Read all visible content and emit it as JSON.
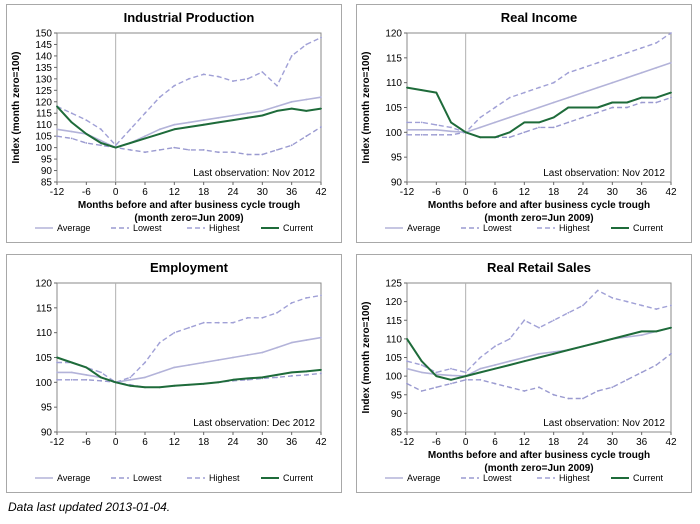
{
  "footer": "Data last updated 2013-01-04.",
  "colors": {
    "average": "#b3b3d9",
    "lowest": "#9a9ad0",
    "highest": "#a0a0d6",
    "current": "#1e6b3a"
  },
  "chart_data": [
    {
      "type": "line",
      "title": "Industrial Production",
      "xlabel": "Months before and after business cycle trough",
      "xlabel2": "(month zero=Jun 2009)",
      "ylabel": "Index (month zero=100)",
      "note": "Last observation: Nov 2012",
      "xlim": [
        -12,
        42
      ],
      "xticks": [
        -12,
        -6,
        0,
        6,
        12,
        18,
        24,
        30,
        36,
        42
      ],
      "ylim": [
        85,
        150
      ],
      "yticks": [
        85,
        90,
        95,
        100,
        105,
        110,
        115,
        120,
        125,
        130,
        135,
        140,
        145,
        150
      ],
      "x": [
        -12,
        -9,
        -6,
        -3,
        0,
        3,
        6,
        9,
        12,
        15,
        18,
        21,
        24,
        27,
        30,
        33,
        36,
        39,
        42
      ],
      "series": [
        {
          "name": "Average",
          "values": [
            108,
            107,
            106,
            103,
            100,
            102,
            105,
            108,
            110,
            111,
            112,
            113,
            114,
            115,
            116,
            118,
            120,
            121,
            122
          ]
        },
        {
          "name": "Lowest",
          "values": [
            105,
            104,
            102,
            101,
            100,
            99,
            98,
            99,
            100,
            99,
            99,
            98,
            98,
            97,
            97,
            99,
            101,
            105,
            109
          ]
        },
        {
          "name": "Highest",
          "values": [
            118,
            115,
            112,
            108,
            101,
            108,
            115,
            122,
            127,
            130,
            132,
            131,
            129,
            130,
            133,
            127,
            140,
            145,
            148
          ]
        },
        {
          "name": "Current",
          "values": [
            118,
            111,
            106,
            102,
            100,
            102,
            104,
            106,
            108,
            109,
            110,
            111,
            112,
            113,
            114,
            116,
            117,
            116,
            117
          ]
        }
      ],
      "legend": [
        "Average",
        "Lowest",
        "Highest",
        "Current"
      ]
    },
    {
      "type": "line",
      "title": "Real Income",
      "xlabel": "Months before and after business cycle trough",
      "xlabel2": "(month zero=Jun 2009)",
      "ylabel": "Index (month zero=100)",
      "note": "Last observation: Nov 2012",
      "xlim": [
        -12,
        42
      ],
      "xticks": [
        -12,
        -6,
        0,
        6,
        12,
        18,
        24,
        30,
        36,
        42
      ],
      "ylim": [
        90,
        120
      ],
      "yticks": [
        90,
        95,
        100,
        105,
        110,
        115,
        120
      ],
      "x": [
        -12,
        -9,
        -6,
        -3,
        0,
        3,
        6,
        9,
        12,
        15,
        18,
        21,
        24,
        27,
        30,
        33,
        36,
        39,
        42
      ],
      "series": [
        {
          "name": "Average",
          "values": [
            100.5,
            100.5,
            100.5,
            100.2,
            100,
            101,
            102,
            103,
            104,
            105,
            106,
            107,
            108,
            109,
            110,
            111,
            112,
            113,
            114
          ]
        },
        {
          "name": "Lowest",
          "values": [
            99.5,
            99.5,
            99.5,
            99.5,
            100,
            99,
            99,
            99,
            100,
            101,
            101,
            102,
            103,
            104,
            105,
            105,
            106,
            106,
            107
          ]
        },
        {
          "name": "Highest",
          "values": [
            102,
            102,
            101.5,
            101,
            100,
            103,
            105,
            107,
            108,
            109,
            110,
            112,
            113,
            114,
            115,
            116,
            117,
            118,
            120
          ]
        },
        {
          "name": "Current",
          "values": [
            109,
            108.5,
            108,
            102,
            100,
            99,
            99,
            100,
            102,
            102,
            103,
            105,
            105,
            105,
            106,
            106,
            107,
            107,
            108
          ]
        }
      ],
      "legend": [
        "Average",
        "Lowest",
        "Highest",
        "Current"
      ]
    },
    {
      "type": "line",
      "title": "Employment",
      "xlabel": "",
      "xlabel2": "",
      "ylabel": "",
      "note": "Last observation: Dec 2012",
      "xlim": [
        -12,
        42
      ],
      "xticks": [
        -12,
        -6,
        0,
        6,
        12,
        18,
        24,
        30,
        36,
        42
      ],
      "ylim": [
        90,
        120
      ],
      "yticks": [
        90,
        95,
        100,
        105,
        110,
        115,
        120
      ],
      "x": [
        -12,
        -9,
        -6,
        -3,
        0,
        3,
        6,
        9,
        12,
        15,
        18,
        21,
        24,
        27,
        30,
        33,
        36,
        39,
        42
      ],
      "series": [
        {
          "name": "Average",
          "values": [
            102,
            102,
            101.5,
            101,
            100,
            100.5,
            101,
            102,
            103,
            103.5,
            104,
            104.5,
            105,
            105.5,
            106,
            107,
            108,
            108.5,
            109
          ]
        },
        {
          "name": "Lowest",
          "values": [
            100.5,
            100.5,
            100.5,
            100.3,
            100,
            99.5,
            99,
            99,
            99.3,
            99.5,
            99.7,
            100,
            100.3,
            100.5,
            100.8,
            101,
            101.3,
            101.5,
            101.8
          ]
        },
        {
          "name": "Highest",
          "values": [
            104,
            104,
            103,
            102,
            100,
            101,
            104,
            108,
            110,
            111,
            112,
            112,
            112,
            113,
            113,
            114,
            116,
            117,
            117.5
          ]
        },
        {
          "name": "Current",
          "values": [
            105,
            104,
            103,
            101,
            100,
            99.3,
            99,
            99,
            99.3,
            99.5,
            99.7,
            100,
            100.5,
            100.8,
            101,
            101.5,
            102,
            102.2,
            102.5
          ]
        }
      ],
      "legend": [
        "Average",
        "Lowest",
        "Highest",
        "Current"
      ]
    },
    {
      "type": "line",
      "title": "Real Retail Sales",
      "xlabel": "Months before and after business cycle trough",
      "xlabel2": "(month zero=Jun 2009)",
      "ylabel": "Index (month zero=100)",
      "note": "Last observation: Nov 2012",
      "xlim": [
        -12,
        42
      ],
      "xticks": [
        -12,
        -6,
        0,
        6,
        12,
        18,
        24,
        30,
        36,
        42
      ],
      "ylim": [
        85,
        125
      ],
      "yticks": [
        85,
        90,
        95,
        100,
        105,
        110,
        115,
        120,
        125
      ],
      "x": [
        -12,
        -9,
        -6,
        -3,
        0,
        3,
        6,
        9,
        12,
        15,
        18,
        21,
        24,
        27,
        30,
        33,
        36,
        39,
        42
      ],
      "series": [
        {
          "name": "Average",
          "values": [
            102,
            101,
            100.5,
            100.2,
            100,
            102,
            103,
            104,
            105,
            106,
            106.5,
            107,
            108,
            109,
            110,
            110.5,
            111,
            112,
            113
          ]
        },
        {
          "name": "Lowest",
          "values": [
            98,
            96,
            97,
            98,
            99,
            99,
            98,
            97,
            96,
            97,
            95,
            94,
            94,
            96,
            97,
            99,
            101,
            103,
            106
          ]
        },
        {
          "name": "Highest",
          "values": [
            104,
            103,
            101,
            102,
            101,
            105,
            108,
            110,
            115,
            113,
            115,
            117,
            119,
            123,
            121,
            120,
            119,
            118,
            119
          ]
        },
        {
          "name": "Current",
          "values": [
            110,
            104,
            100,
            99,
            100,
            101,
            102,
            103,
            104,
            105,
            106,
            107,
            108,
            109,
            110,
            111,
            112,
            112,
            113
          ]
        }
      ],
      "legend": [
        "Average",
        "Lowest",
        "Highest",
        "Current"
      ]
    }
  ]
}
